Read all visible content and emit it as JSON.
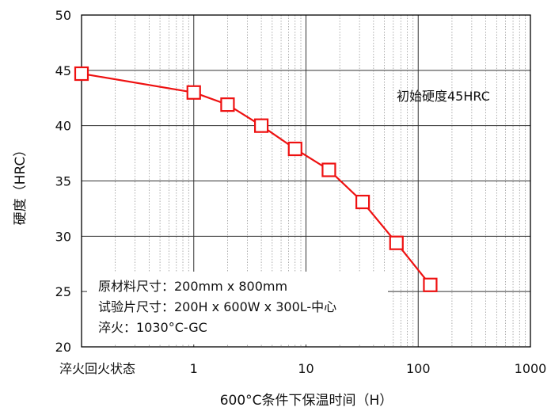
{
  "chart_data": {
    "type": "line",
    "xlabel": "600°C条件下保温时间（H）",
    "ylabel": "硬度（HRC）",
    "x_scale": "log",
    "xlim": [
      0.1,
      1000
    ],
    "ylim": [
      20,
      50
    ],
    "grid": true,
    "x_ticks": [
      {
        "value": 1,
        "label": "1"
      },
      {
        "value": 10,
        "label": "10"
      },
      {
        "value": 100,
        "label": "100"
      },
      {
        "value": 1000,
        "label": "1000"
      }
    ],
    "x_origin_label": "淬火回火状态",
    "y_ticks": [
      20,
      25,
      30,
      35,
      40,
      45,
      50
    ],
    "series": [
      {
        "color": "#ee1111",
        "marker": "square-open",
        "points": [
          {
            "x": 0.1,
            "y": 44.7
          },
          {
            "x": 1,
            "y": 43.0
          },
          {
            "x": 2,
            "y": 41.9
          },
          {
            "x": 4,
            "y": 40.0
          },
          {
            "x": 8,
            "y": 37.9
          },
          {
            "x": 16,
            "y": 36.0
          },
          {
            "x": 32,
            "y": 33.1
          },
          {
            "x": 64,
            "y": 29.4
          },
          {
            "x": 128,
            "y": 25.6
          }
        ]
      }
    ],
    "annotations": {
      "initial_hardness": "初始硬度45HRC",
      "notes": [
        "原材料尺寸：200mm x 800mm",
        "试验片尺寸：200H x 600W x 300L-中心",
        "淬火：1030°C-GC"
      ]
    }
  }
}
